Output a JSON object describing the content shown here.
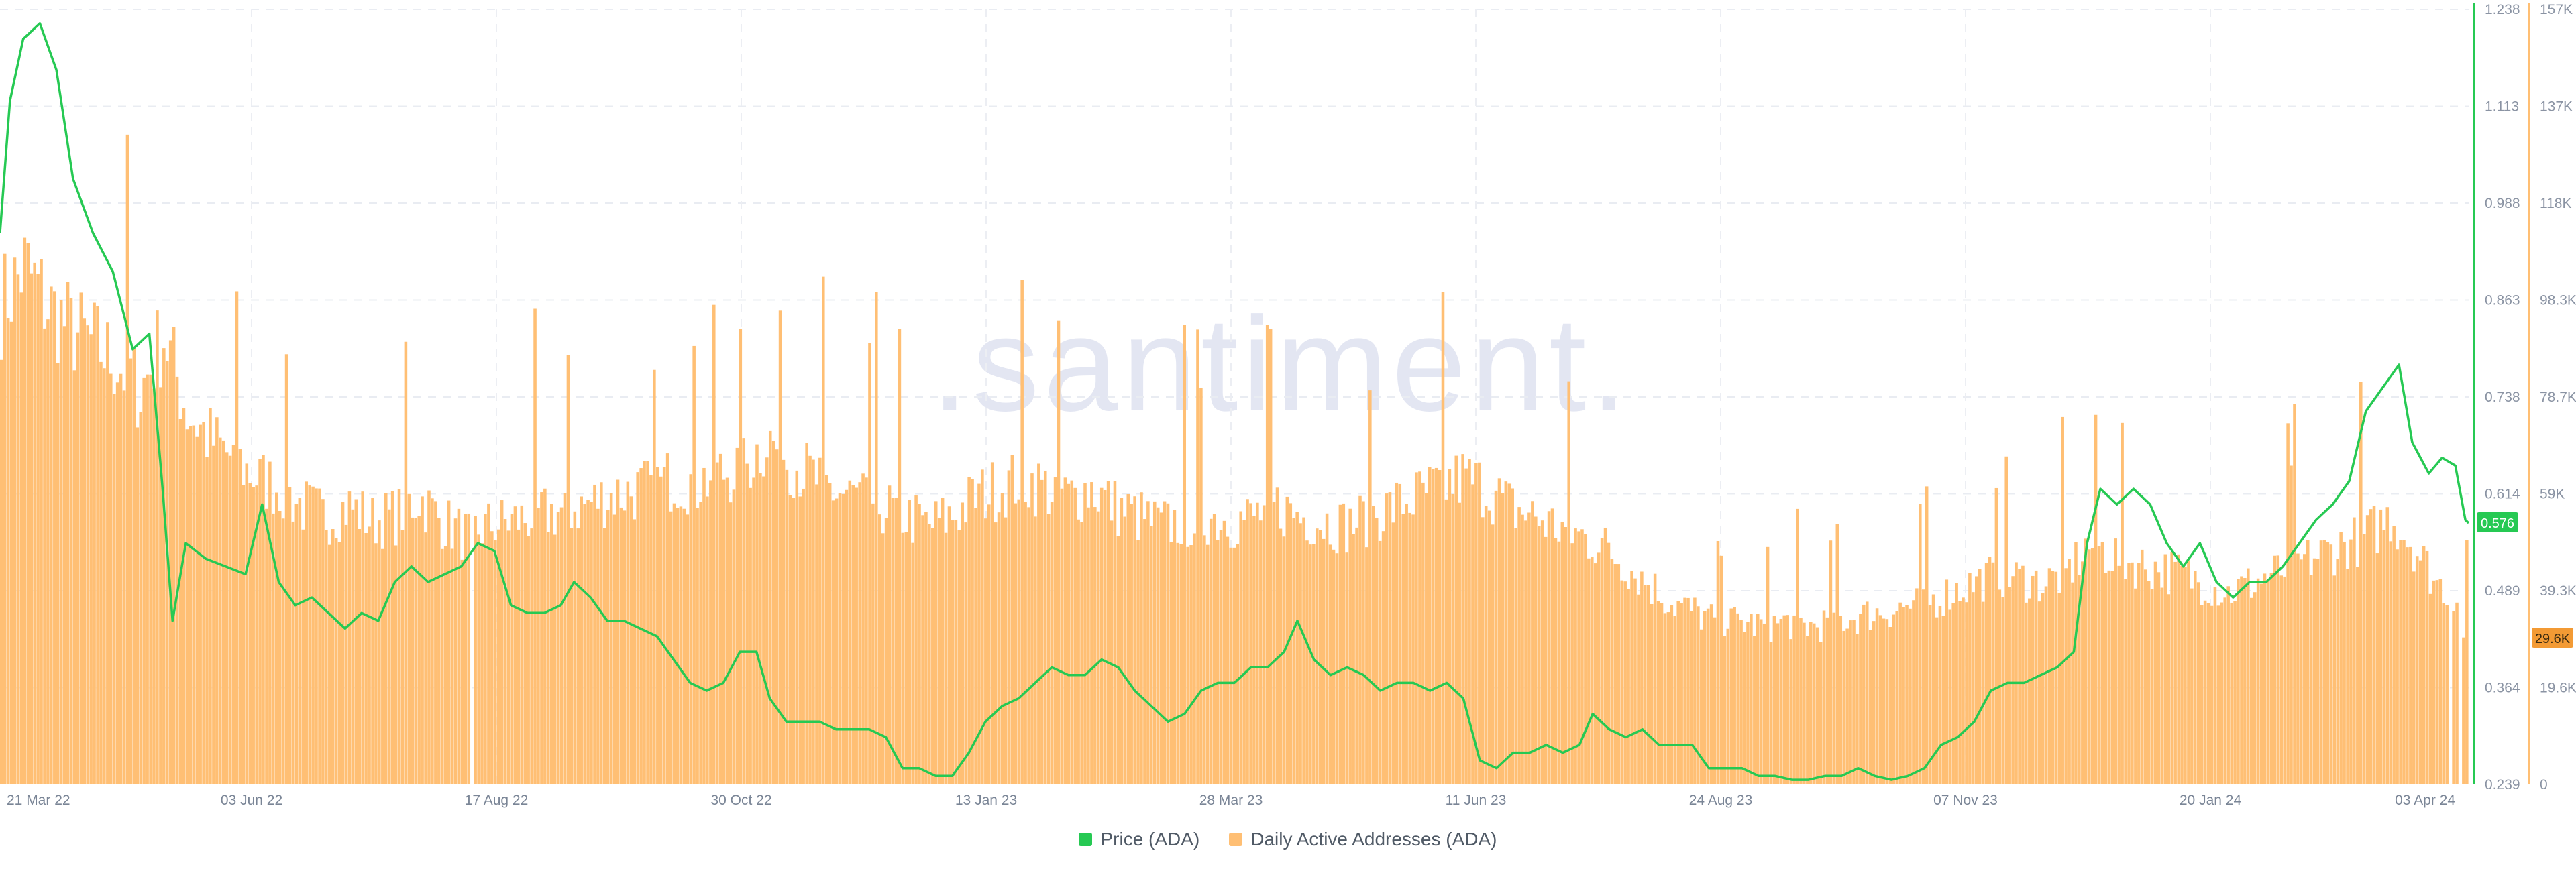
{
  "chart_data": {
    "type": "bar",
    "watermark": ".santiment.",
    "x": {
      "tick_labels": [
        "21 Mar 22",
        "03 Jun 22",
        "17 Aug 22",
        "30 Oct 22",
        "13 Jan 23",
        "28 Mar 23",
        "11 Jun 23",
        "24 Aug 23",
        "07 Nov 23",
        "20 Jan 24",
        "03 Apr 24"
      ],
      "range": [
        "2022-03-21",
        "2024-04-03"
      ]
    },
    "y_left": {
      "label": "",
      "ticks": [
        "1.238",
        "1.113",
        "0.988",
        "0.863",
        "0.738",
        "0.614",
        "0.489",
        "0.364",
        "0.239"
      ],
      "ylim": [
        0.239,
        1.238
      ]
    },
    "y_right": {
      "label": "",
      "ticks": [
        "157K",
        "137K",
        "118K",
        "98.3K",
        "78.7K",
        "59K",
        "39.3K",
        "19.6K",
        "0"
      ],
      "ylim": [
        0,
        157000
      ]
    },
    "series": [
      {
        "name": "Price (ADA)",
        "type": "line",
        "axis": "left",
        "color": "#26c953",
        "current_label": "0.576",
        "points": [
          [
            "2022-03-21",
            0.95
          ],
          [
            "2022-03-24",
            1.12
          ],
          [
            "2022-03-28",
            1.2
          ],
          [
            "2022-04-02",
            1.22
          ],
          [
            "2022-04-07",
            1.16
          ],
          [
            "2022-04-12",
            1.02
          ],
          [
            "2022-04-18",
            0.95
          ],
          [
            "2022-04-24",
            0.9
          ],
          [
            "2022-04-30",
            0.8
          ],
          [
            "2022-05-05",
            0.82
          ],
          [
            "2022-05-09",
            0.62
          ],
          [
            "2022-05-12",
            0.45
          ],
          [
            "2022-05-16",
            0.55
          ],
          [
            "2022-05-22",
            0.53
          ],
          [
            "2022-05-28",
            0.52
          ],
          [
            "2022-06-03",
            0.51
          ],
          [
            "2022-06-08",
            0.6
          ],
          [
            "2022-06-13",
            0.5
          ],
          [
            "2022-06-18",
            0.47
          ],
          [
            "2022-06-23",
            0.48
          ],
          [
            "2022-06-28",
            0.46
          ],
          [
            "2022-07-03",
            0.44
          ],
          [
            "2022-07-08",
            0.46
          ],
          [
            "2022-07-13",
            0.45
          ],
          [
            "2022-07-18",
            0.5
          ],
          [
            "2022-07-23",
            0.52
          ],
          [
            "2022-07-28",
            0.5
          ],
          [
            "2022-08-02",
            0.51
          ],
          [
            "2022-08-07",
            0.52
          ],
          [
            "2022-08-12",
            0.55
          ],
          [
            "2022-08-17",
            0.54
          ],
          [
            "2022-08-22",
            0.47
          ],
          [
            "2022-08-27",
            0.46
          ],
          [
            "2022-09-01",
            0.46
          ],
          [
            "2022-09-06",
            0.47
          ],
          [
            "2022-09-10",
            0.5
          ],
          [
            "2022-09-15",
            0.48
          ],
          [
            "2022-09-20",
            0.45
          ],
          [
            "2022-09-25",
            0.45
          ],
          [
            "2022-09-30",
            0.44
          ],
          [
            "2022-10-05",
            0.43
          ],
          [
            "2022-10-10",
            0.4
          ],
          [
            "2022-10-15",
            0.37
          ],
          [
            "2022-10-20",
            0.36
          ],
          [
            "2022-10-25",
            0.37
          ],
          [
            "2022-10-30",
            0.41
          ],
          [
            "2022-11-04",
            0.41
          ],
          [
            "2022-11-08",
            0.35
          ],
          [
            "2022-11-13",
            0.32
          ],
          [
            "2022-11-18",
            0.32
          ],
          [
            "2022-11-23",
            0.32
          ],
          [
            "2022-11-28",
            0.31
          ],
          [
            "2022-12-03",
            0.31
          ],
          [
            "2022-12-08",
            0.31
          ],
          [
            "2022-12-13",
            0.3
          ],
          [
            "2022-12-18",
            0.26
          ],
          [
            "2022-12-23",
            0.26
          ],
          [
            "2022-12-28",
            0.25
          ],
          [
            "2023-01-02",
            0.25
          ],
          [
            "2023-01-07",
            0.28
          ],
          [
            "2023-01-12",
            0.32
          ],
          [
            "2023-01-17",
            0.34
          ],
          [
            "2023-01-22",
            0.35
          ],
          [
            "2023-01-27",
            0.37
          ],
          [
            "2023-02-01",
            0.39
          ],
          [
            "2023-02-06",
            0.38
          ],
          [
            "2023-02-11",
            0.38
          ],
          [
            "2023-02-16",
            0.4
          ],
          [
            "2023-02-21",
            0.39
          ],
          [
            "2023-02-26",
            0.36
          ],
          [
            "2023-03-03",
            0.34
          ],
          [
            "2023-03-08",
            0.32
          ],
          [
            "2023-03-13",
            0.33
          ],
          [
            "2023-03-18",
            0.36
          ],
          [
            "2023-03-23",
            0.37
          ],
          [
            "2023-03-28",
            0.37
          ],
          [
            "2023-04-02",
            0.39
          ],
          [
            "2023-04-07",
            0.39
          ],
          [
            "2023-04-12",
            0.41
          ],
          [
            "2023-04-16",
            0.45
          ],
          [
            "2023-04-21",
            0.4
          ],
          [
            "2023-04-26",
            0.38
          ],
          [
            "2023-05-01",
            0.39
          ],
          [
            "2023-05-06",
            0.38
          ],
          [
            "2023-05-11",
            0.36
          ],
          [
            "2023-05-16",
            0.37
          ],
          [
            "2023-05-21",
            0.37
          ],
          [
            "2023-05-26",
            0.36
          ],
          [
            "2023-05-31",
            0.37
          ],
          [
            "2023-06-05",
            0.35
          ],
          [
            "2023-06-10",
            0.27
          ],
          [
            "2023-06-15",
            0.26
          ],
          [
            "2023-06-20",
            0.28
          ],
          [
            "2023-06-25",
            0.28
          ],
          [
            "2023-06-30",
            0.29
          ],
          [
            "2023-07-05",
            0.28
          ],
          [
            "2023-07-10",
            0.29
          ],
          [
            "2023-07-14",
            0.33
          ],
          [
            "2023-07-19",
            0.31
          ],
          [
            "2023-07-24",
            0.3
          ],
          [
            "2023-07-29",
            0.31
          ],
          [
            "2023-08-03",
            0.29
          ],
          [
            "2023-08-08",
            0.29
          ],
          [
            "2023-08-13",
            0.29
          ],
          [
            "2023-08-18",
            0.26
          ],
          [
            "2023-08-23",
            0.26
          ],
          [
            "2023-08-28",
            0.26
          ],
          [
            "2023-09-02",
            0.25
          ],
          [
            "2023-09-07",
            0.25
          ],
          [
            "2023-09-12",
            0.245
          ],
          [
            "2023-09-17",
            0.245
          ],
          [
            "2023-09-22",
            0.25
          ],
          [
            "2023-09-27",
            0.25
          ],
          [
            "2023-10-02",
            0.26
          ],
          [
            "2023-10-07",
            0.25
          ],
          [
            "2023-10-12",
            0.245
          ],
          [
            "2023-10-17",
            0.25
          ],
          [
            "2023-10-22",
            0.26
          ],
          [
            "2023-10-27",
            0.29
          ],
          [
            "2023-11-01",
            0.3
          ],
          [
            "2023-11-06",
            0.32
          ],
          [
            "2023-11-11",
            0.36
          ],
          [
            "2023-11-16",
            0.37
          ],
          [
            "2023-11-21",
            0.37
          ],
          [
            "2023-11-26",
            0.38
          ],
          [
            "2023-12-01",
            0.39
          ],
          [
            "2023-12-06",
            0.41
          ],
          [
            "2023-12-10",
            0.55
          ],
          [
            "2023-12-14",
            0.62
          ],
          [
            "2023-12-19",
            0.6
          ],
          [
            "2023-12-24",
            0.62
          ],
          [
            "2023-12-29",
            0.6
          ],
          [
            "2024-01-03",
            0.55
          ],
          [
            "2024-01-08",
            0.52
          ],
          [
            "2024-01-13",
            0.55
          ],
          [
            "2024-01-18",
            0.5
          ],
          [
            "2024-01-23",
            0.48
          ],
          [
            "2024-01-28",
            0.5
          ],
          [
            "2024-02-02",
            0.5
          ],
          [
            "2024-02-07",
            0.52
          ],
          [
            "2024-02-12",
            0.55
          ],
          [
            "2024-02-17",
            0.58
          ],
          [
            "2024-02-22",
            0.6
          ],
          [
            "2024-02-27",
            0.63
          ],
          [
            "2024-03-03",
            0.72
          ],
          [
            "2024-03-08",
            0.75
          ],
          [
            "2024-03-13",
            0.78
          ],
          [
            "2024-03-17",
            0.68
          ],
          [
            "2024-03-22",
            0.64
          ],
          [
            "2024-03-26",
            0.66
          ],
          [
            "2024-03-30",
            0.65
          ],
          [
            "2024-04-02",
            0.58
          ],
          [
            "2024-04-03",
            0.576
          ]
        ]
      },
      {
        "name": "Daily Active Addresses (ADA)",
        "type": "bar",
        "axis": "right",
        "color": "#ffbf74",
        "current_label": "29.6K",
        "points": [
          [
            "2022-03-21",
            100000
          ],
          [
            "2022-03-28",
            108000
          ],
          [
            "2022-04-04",
            100000
          ],
          [
            "2022-04-11",
            95000
          ],
          [
            "2022-04-18",
            92000
          ],
          [
            "2022-04-25",
            88000
          ],
          [
            "2022-05-02",
            82000
          ],
          [
            "2022-05-09",
            94000
          ],
          [
            "2022-05-16",
            78000
          ],
          [
            "2022-05-23",
            72000
          ],
          [
            "2022-05-30",
            68000
          ],
          [
            "2022-06-06",
            64000
          ],
          [
            "2022-06-13",
            62000
          ],
          [
            "2022-06-20",
            58000
          ],
          [
            "2022-06-27",
            56000
          ],
          [
            "2022-07-04",
            58000
          ],
          [
            "2022-07-11",
            55000
          ],
          [
            "2022-07-18",
            56000
          ],
          [
            "2022-07-25",
            60000
          ],
          [
            "2022-08-01",
            55000
          ],
          [
            "2022-08-08",
            52000
          ],
          [
            "2022-08-15",
            54000
          ],
          [
            "2022-08-22",
            55000
          ],
          [
            "2022-08-29",
            56000
          ],
          [
            "2022-09-05",
            57000
          ],
          [
            "2022-09-12",
            58000
          ],
          [
            "2022-09-19",
            60000
          ],
          [
            "2022-09-26",
            61000
          ],
          [
            "2022-10-03",
            62000
          ],
          [
            "2022-10-10",
            64000
          ],
          [
            "2022-10-17",
            63000
          ],
          [
            "2022-10-24",
            65000
          ],
          [
            "2022-10-31",
            66000
          ],
          [
            "2022-11-07",
            72000
          ],
          [
            "2022-11-14",
            68000
          ],
          [
            "2022-11-21",
            64000
          ],
          [
            "2022-11-28",
            61000
          ],
          [
            "2022-12-05",
            60000
          ],
          [
            "2022-12-12",
            58000
          ],
          [
            "2022-12-19",
            56000
          ],
          [
            "2022-12-26",
            54000
          ],
          [
            "2023-01-02",
            56000
          ],
          [
            "2023-01-09",
            60000
          ],
          [
            "2023-01-16",
            62000
          ],
          [
            "2023-01-23",
            64000
          ],
          [
            "2023-01-30",
            62000
          ],
          [
            "2023-02-06",
            60000
          ],
          [
            "2023-02-13",
            62000
          ],
          [
            "2023-02-20",
            58000
          ],
          [
            "2023-02-27",
            56000
          ],
          [
            "2023-03-06",
            54000
          ],
          [
            "2023-03-13",
            55000
          ],
          [
            "2023-03-20",
            56000
          ],
          [
            "2023-03-27",
            55000
          ],
          [
            "2023-04-03",
            56000
          ],
          [
            "2023-04-10",
            58000
          ],
          [
            "2023-04-17",
            56000
          ],
          [
            "2023-04-24",
            55000
          ],
          [
            "2023-05-01",
            54000
          ],
          [
            "2023-05-08",
            56000
          ],
          [
            "2023-05-15",
            58000
          ],
          [
            "2023-05-22",
            60000
          ],
          [
            "2023-05-29",
            62000
          ],
          [
            "2023-06-05",
            64000
          ],
          [
            "2023-06-12",
            62000
          ],
          [
            "2023-06-19",
            58000
          ],
          [
            "2023-06-26",
            56000
          ],
          [
            "2023-07-03",
            54000
          ],
          [
            "2023-07-10",
            52000
          ],
          [
            "2023-07-17",
            50000
          ],
          [
            "2023-07-24",
            46000
          ],
          [
            "2023-07-31",
            42000
          ],
          [
            "2023-08-07",
            38000
          ],
          [
            "2023-08-14",
            36000
          ],
          [
            "2023-08-21",
            34000
          ],
          [
            "2023-08-28",
            34000
          ],
          [
            "2023-09-04",
            33000
          ],
          [
            "2023-09-11",
            34000
          ],
          [
            "2023-09-18",
            33000
          ],
          [
            "2023-09-25",
            34000
          ],
          [
            "2023-10-02",
            35000
          ],
          [
            "2023-10-09",
            36000
          ],
          [
            "2023-10-16",
            37000
          ],
          [
            "2023-10-23",
            38000
          ],
          [
            "2023-10-30",
            40000
          ],
          [
            "2023-11-06",
            42000
          ],
          [
            "2023-11-13",
            44000
          ],
          [
            "2023-11-20",
            43000
          ],
          [
            "2023-11-27",
            42000
          ],
          [
            "2023-12-04",
            44000
          ],
          [
            "2023-12-11",
            50000
          ],
          [
            "2023-12-18",
            48000
          ],
          [
            "2023-12-25",
            46000
          ],
          [
            "2024-01-01",
            45000
          ],
          [
            "2024-01-08",
            44000
          ],
          [
            "2024-01-15",
            42000
          ],
          [
            "2024-01-22",
            40000
          ],
          [
            "2024-01-29",
            42000
          ],
          [
            "2024-02-05",
            44000
          ],
          [
            "2024-02-12",
            46000
          ],
          [
            "2024-02-19",
            48000
          ],
          [
            "2024-02-26",
            50000
          ],
          [
            "2024-03-04",
            52000
          ],
          [
            "2024-03-11",
            56000
          ],
          [
            "2024-03-18",
            50000
          ],
          [
            "2024-03-25",
            42000
          ],
          [
            "2024-03-31",
            40000
          ],
          [
            "2024-04-03",
            29600
          ]
        ]
      }
    ],
    "grid": true,
    "legend_position": "bottom-center"
  }
}
